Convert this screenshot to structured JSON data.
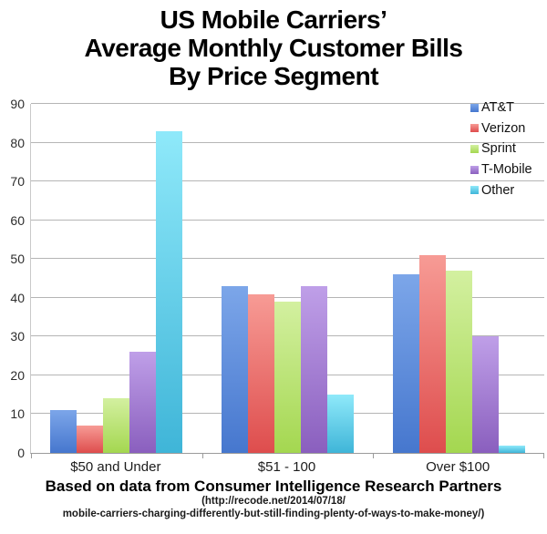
{
  "title": {
    "line1": "US Mobile Carriers’",
    "line2": "Average Monthly Customer Bills",
    "line3": "By Price Segment"
  },
  "caption": {
    "source": "Based on data from Consumer Intelligence Research Partners",
    "url_line1": "(http://recode.net/2014/07/18/",
    "url_line2": "mobile-carriers-charging-differently-but-still-finding-plenty-of-ways-to-make-money/)"
  },
  "chart_data": {
    "type": "bar",
    "title": "US Mobile Carriers' Average Monthly Customer Bills By Price Segment",
    "categories": [
      "$50 and Under",
      "$51 - 100",
      "Over $100"
    ],
    "series": [
      {
        "name": "AT&T",
        "values": [
          11,
          43,
          46
        ],
        "color_top": "#7CA6E9",
        "color_bottom": "#4677CE"
      },
      {
        "name": "Verizon",
        "values": [
          7,
          41,
          51
        ],
        "color_top": "#F79B95",
        "color_bottom": "#DE4D4D"
      },
      {
        "name": "Sprint",
        "values": [
          14,
          39,
          47
        ],
        "color_top": "#D3F0A0",
        "color_bottom": "#A4D750"
      },
      {
        "name": "T-Mobile",
        "values": [
          26,
          43,
          30
        ],
        "color_top": "#BF9FE8",
        "color_bottom": "#8A5FBE"
      },
      {
        "name": "Other",
        "values": [
          83,
          15,
          2
        ],
        "color_top": "#8FE9FA",
        "color_bottom": "#3FB5D8"
      }
    ],
    "xlabel": "",
    "ylabel": "",
    "ylim": [
      0,
      90
    ],
    "yticks": [
      0,
      10,
      20,
      30,
      40,
      50,
      60,
      70,
      80,
      90
    ],
    "grid": true,
    "legend_position": "top-right",
    "grid_color": "#b5b5b5",
    "axis_color": "#9a9a9a"
  }
}
